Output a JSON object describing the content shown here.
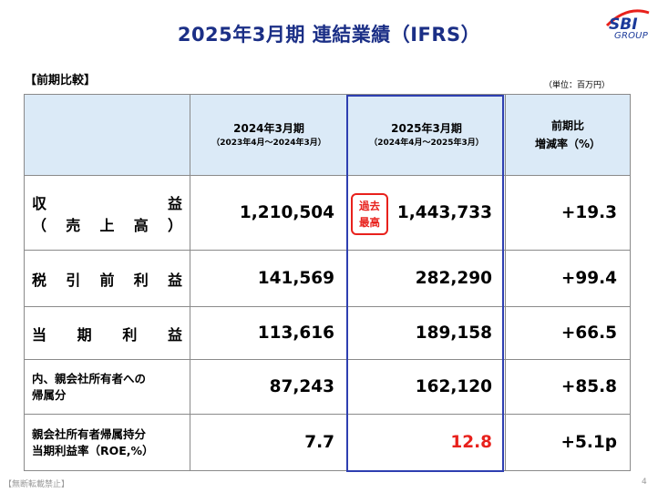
{
  "slide": {
    "title": "2025年3月期 連結業績（IFRS）",
    "logo": {
      "mark": "SBI",
      "text": "GROUP"
    },
    "section_label": "【前期比較】",
    "unit": "（単位：百万円）",
    "footer": "【無断転載禁止】",
    "page_number": "4"
  },
  "table": {
    "headers": {
      "fy2024_main": "2024年3月期",
      "fy2024_sub": "（2023年4月～2024年3月）",
      "fy2025_main": "2025年3月期",
      "fy2025_sub": "（2024年4月～2025年3月）",
      "change_line1": "前期比",
      "change_line2": "増減率（%）"
    },
    "badge": {
      "line1": "過去",
      "line2": "最高"
    },
    "rows": [
      {
        "label_chars_1": [
          "収",
          "益"
        ],
        "label_chars_2": [
          "（",
          "売",
          "上",
          "高",
          "）"
        ],
        "fy2024": "1,210,504",
        "fy2025": "1,443,733",
        "change": "+19.3"
      },
      {
        "label_chars": [
          "税",
          "引",
          "前",
          "利",
          "益"
        ],
        "fy2024": "141,569",
        "fy2025": "282,290",
        "change": "+99.4"
      },
      {
        "label_chars": [
          "当",
          "期",
          "利",
          "益"
        ],
        "fy2024": "113,616",
        "fy2025": "189,158",
        "change": "+66.5"
      },
      {
        "label_line1": "内、親会社所有者への",
        "label_line2": "帰属分",
        "fy2024": "87,243",
        "fy2025": "162,120",
        "change": "+85.8"
      },
      {
        "label_line1": "親会社所有者帰属持分",
        "label_line2": "当期利益率（ROE,%）",
        "fy2024": "7.7",
        "fy2025": "12.8",
        "change": "+5.1p"
      }
    ],
    "colors": {
      "header_bg": "#dbeaf7",
      "highlight_border": "#2e3fb1",
      "accent_red": "#e8211c",
      "title": "#1b2f86"
    }
  }
}
